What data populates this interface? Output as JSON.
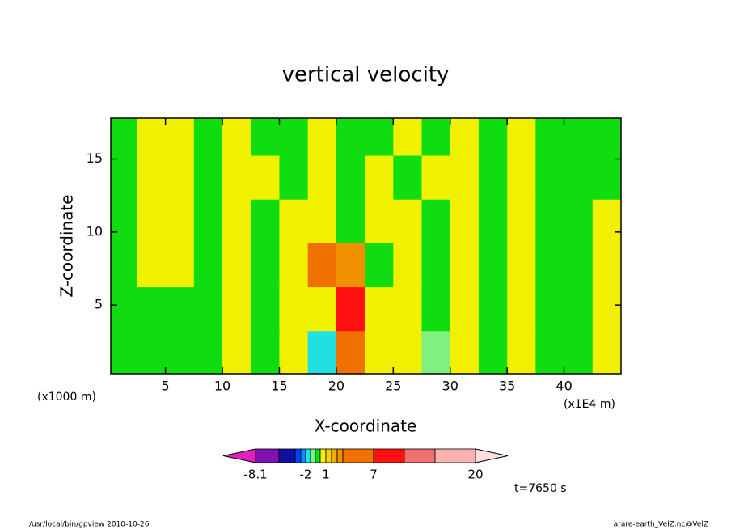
{
  "chart_data": {
    "type": "contour",
    "title": "vertical velocity",
    "xlabel": "X-coordinate",
    "ylabel": "Z-coordinate",
    "x_unit_label": "(x1000 m)",
    "x_unit_label_right": "(x1E4 m)",
    "annotation": "t=7650 s",
    "footer_left": "/usr/local/bin/gpview  2010-10-26",
    "footer_right": "arare-earth_VelZ.nc@VelZ",
    "xlim": [
      0.2,
      45
    ],
    "ylim": [
      0.3,
      17.8
    ],
    "xticks": [
      5,
      10,
      15,
      20,
      25,
      30,
      35,
      40
    ],
    "yticks": [
      5,
      10,
      15
    ],
    "x": [
      1.25,
      3.75,
      6.25,
      8.75,
      11.25,
      13.75,
      16.25,
      18.75,
      21.25,
      23.75,
      26.25,
      28.75,
      31.25,
      33.75,
      36.25,
      38.75,
      41.25,
      43.75
    ],
    "y": [
      1.75,
      4.75,
      7.75,
      10.75,
      13.75,
      16.75
    ],
    "z": [
      [
        -0.3,
        -0.3,
        -0.3,
        -0.3,
        0.5,
        -0.3,
        0.5,
        -1.5,
        5,
        0.5,
        0.5,
        -1,
        0.5,
        -0.3,
        0.5,
        -0.3,
        -0.3,
        0.5
      ],
      [
        -0.3,
        -0.3,
        -0.3,
        -0.3,
        0.5,
        -0.3,
        0.5,
        0.5,
        8,
        0.5,
        0.5,
        -0.3,
        0.5,
        -0.3,
        0.5,
        -0.3,
        -0.3,
        0.5
      ],
      [
        -0.3,
        0.5,
        0.5,
        -0.3,
        0.5,
        -0.3,
        0.5,
        5,
        3,
        -0.3,
        0.5,
        -0.3,
        0.5,
        -0.3,
        0.5,
        -0.3,
        -0.3,
        0.5
      ],
      [
        -0.3,
        0.5,
        0.5,
        -0.3,
        0.5,
        -0.3,
        0.5,
        0.5,
        -0.3,
        0.5,
        0.5,
        -0.3,
        0.5,
        -0.3,
        0.5,
        -0.3,
        -0.3,
        0.5
      ],
      [
        -0.3,
        0.5,
        0.5,
        -0.3,
        0.5,
        0.5,
        -0.3,
        0.5,
        -0.3,
        0.5,
        -0.3,
        0.5,
        0.5,
        -0.3,
        0.5,
        -0.3,
        -0.3,
        -0.3
      ],
      [
        -0.3,
        0.5,
        0.5,
        -0.3,
        0.5,
        -0.3,
        -0.3,
        0.5,
        -0.3,
        -0.3,
        0.5,
        -0.3,
        0.5,
        -0.3,
        0.5,
        -0.3,
        -0.3,
        -0.3
      ]
    ],
    "colorbar": {
      "levels": [
        -8.1,
        -6,
        -4,
        -3,
        -2,
        -1,
        -0.5,
        0,
        1,
        2,
        3,
        4,
        7,
        10,
        15,
        20
      ],
      "ticks": [
        -8.1,
        -2,
        1,
        7,
        20
      ],
      "colors": [
        "#e020c0",
        "#8010b0",
        "#1010a0",
        "#0040ff",
        "#0090ff",
        "#20e0e0",
        "#80f080",
        "#10dd10",
        "#f0f000",
        "#f8d000",
        "#f0b000",
        "#f09000",
        "#f07000",
        "#ff1010",
        "#f07070",
        "#ffb0b0",
        "#ffe0e0"
      ]
    }
  }
}
